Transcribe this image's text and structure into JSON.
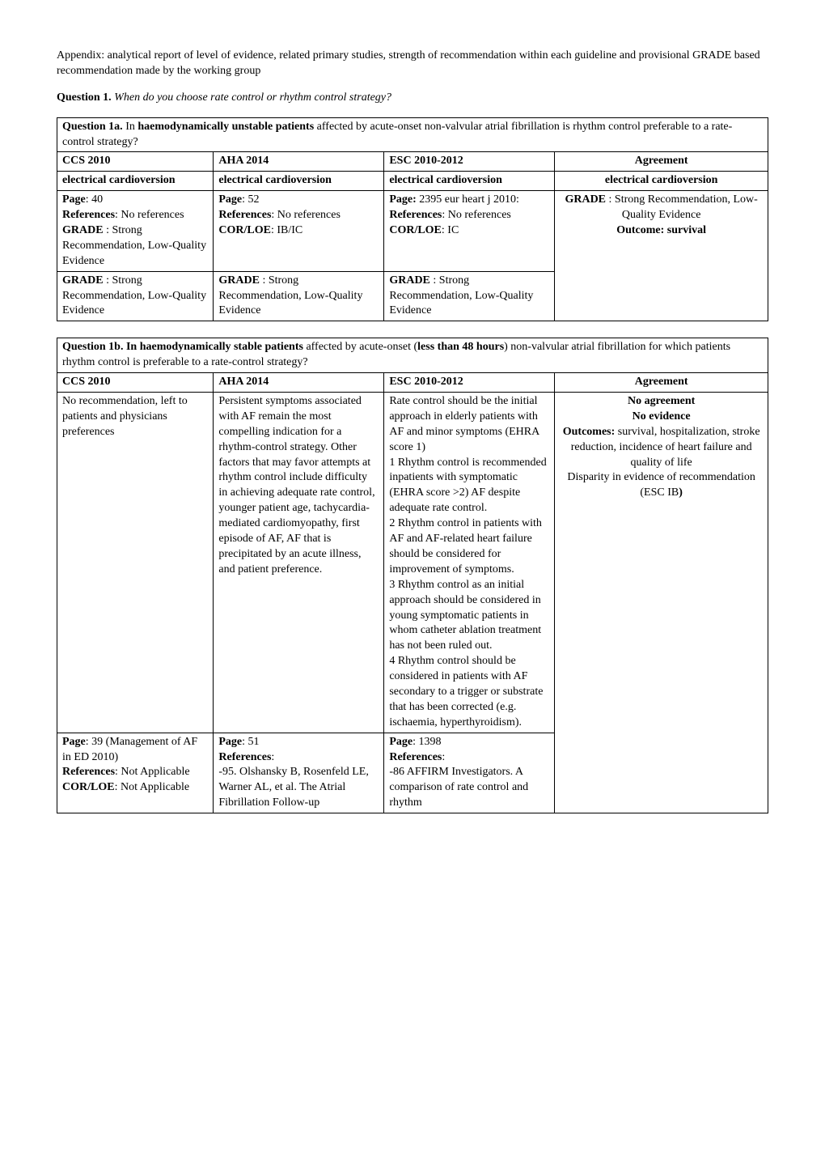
{
  "intro": "Appendix: analytical report of level of evidence, related primary studies, strength of recommendation within each guideline and provisional GRADE based recommendation made by the working group",
  "q1": {
    "label": "Question 1.",
    "text": "When do you choose rate control or rhythm control strategy?"
  },
  "table1": {
    "title_prefix": "Question 1a.",
    "title_mid": " In ",
    "title_bold": "haemodynamically unstable patients",
    "title_rest": " affected by acute-onset non-valvular atrial fibrillation is rhythm control preferable to a rate-control strategy?",
    "headers": {
      "c1": "CCS 2010",
      "c2": "AHA 2014",
      "c3": "ESC 2010-2012",
      "c4": "Agreement"
    },
    "row_ec": {
      "c1": "electrical cardioversion",
      "c2": "electrical cardioversion",
      "c3": "electrical cardioversion",
      "c4": "electrical cardioversion"
    },
    "row_data": {
      "c1_page": "Page",
      "c1_page_v": ": 40",
      "c1_ref": "References",
      "c1_ref_v": ": No references",
      "c1_grade": "GRADE",
      "c1_grade_v": " : Strong Recommendation, Low-Quality Evidence",
      "c2_page": "Page",
      "c2_page_v": ": 52",
      "c2_ref": "References",
      "c2_ref_v": ": No references",
      "c2_cor": "COR/LOE",
      "c2_cor_v": ": IB/IC",
      "c3_page": "Page:",
      "c3_page_v": " 2395 eur heart j 2010:",
      "c3_ref": "References",
      "c3_ref_v": ": No references",
      "c3_cor": "COR/LOE",
      "c3_cor_v": ": IC",
      "c4_grade": "GRADE",
      "c4_grade_v": " : Strong Recommendation, Low-Quality Evidence",
      "c4_outcome": "Outcome: survival"
    },
    "row_grade": {
      "c1_g": "GRADE",
      "c1_v": " : Strong Recommendation, Low-Quality Evidence",
      "c2_g": "GRADE",
      "c2_v": " : Strong Recommendation, Low-Quality Evidence",
      "c3_g": "GRADE",
      "c3_v": " : Strong Recommendation, Low-Quality Evidence"
    }
  },
  "table2": {
    "title_prefix": "Question 1b. In haemodynamically stable patients",
    "title_mid": " affected by acute-onset (",
    "title_bold2": "less than 48 hours",
    "title_rest": ") non-valvular atrial fibrillation for which patients rhythm control is preferable to a rate-control strategy?",
    "headers": {
      "c1": "CCS 2010",
      "c2": "AHA 2014",
      "c3": "ESC 2010-2012",
      "c4": "Agreement"
    },
    "row_main": {
      "c1": "No recommendation, left to patients and physicians preferences",
      "c2": "Persistent symptoms associated with AF remain the most compelling indication for a rhythm-control strategy. Other factors that may favor attempts at rhythm control include difficulty in achieving adequate rate control, younger patient age, tachycardia-mediated cardiomyopathy, first episode of AF, AF that is precipitated by an acute illness, and patient preference.",
      "c3": "Rate control should be the initial approach in elderly patients with AF and minor symptoms (EHRA score 1)\n1 Rhythm control is recommended inpatients with symptomatic (EHRA score >2) AF despite adequate rate control.\n2 Rhythm control in patients with AF and AF-related heart failure should be considered for improvement of symptoms.\n3 Rhythm control as an initial approach should be considered in young symptomatic patients in whom catheter ablation treatment has not been ruled out.\n4 Rhythm control should be considered in patients with AF secondary to a trigger or substrate that has been corrected (e.g. ischaemia, hyperthyroidism).",
      "c4_l1": "No agreement",
      "c4_l2": "No evidence",
      "c4_l3a": "Outcomes:",
      "c4_l3b": " survival, hospitalization, stroke reduction, incidence of heart failure and quality of life",
      "c4_l4": "Disparity in evidence of recommendation (ESC IB",
      "c4_l5": ")"
    },
    "row_ref": {
      "c1_page": "Page",
      "c1_page_v": ": 39 (Management of AF in ED 2010)",
      "c1_ref": "References",
      "c1_ref_v": ": Not Applicable",
      "c1_cor": "COR/LOE",
      "c1_cor_v": ": Not Applicable",
      "c2_page": "Page",
      "c2_page_v": ": 51",
      "c2_ref": "References",
      "c2_ref_v": ":",
      "c2_rest": "-95. Olshansky B, Rosenfeld LE, Warner AL, et al. The Atrial Fibrillation Follow-up",
      "c3_page": "Page",
      "c3_page_v": ": 1398",
      "c3_ref": "References",
      "c3_ref_v": ":",
      "c3_rest": "-86 AFFIRM Investigators. A comparison of rate control and rhythm"
    }
  }
}
